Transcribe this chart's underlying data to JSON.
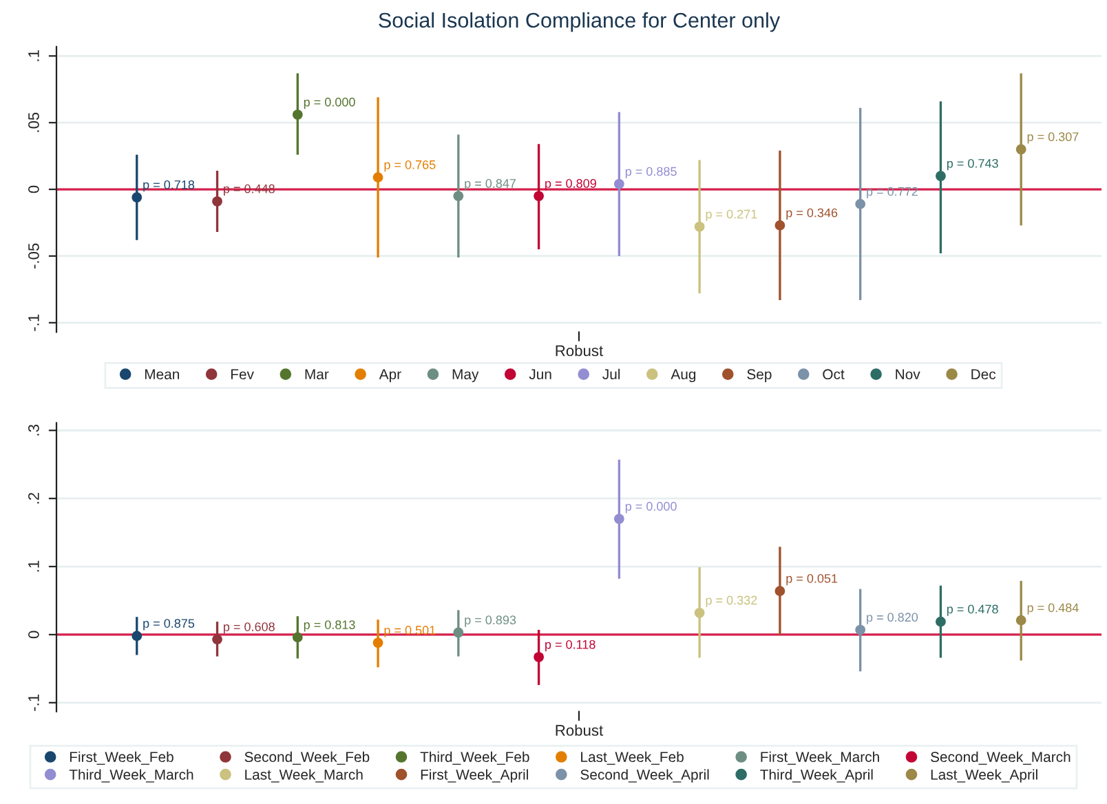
{
  "chart_data": [
    {
      "type": "scatter",
      "title": "Social Isolation Compliance for Center only",
      "categories": [
        null,
        null,
        null,
        null,
        null,
        null,
        null,
        null,
        null,
        null,
        null,
        null
      ],
      "ylim": [
        -0.107,
        0.107
      ],
      "yticks": [
        {
          "value": -0.1,
          "label": "-.1"
        },
        {
          "value": -0.05,
          "label": "-.05"
        },
        {
          "value": 0,
          "label": "0"
        },
        {
          "value": 0.05,
          "label": ".05"
        },
        {
          "value": 0.1,
          "label": ".1"
        }
      ],
      "grid": "y",
      "legend": "bottom",
      "marker": "circle",
      "ref_lines": [
        {
          "axis": "y",
          "value": 0,
          "color": "#d6204c"
        }
      ],
      "annotations": [
        "p = 0.718",
        "p = 0.448",
        "p = 0.000",
        "p = 0.765",
        "p = 0.847",
        "p = 0.809",
        "p = 0.885",
        "p = 0.271",
        "p = 0.346",
        "p = 0.772",
        "p = 0.743",
        "p = 0.307",
        "Robust"
      ],
      "series": [
        {
          "name": "Mean",
          "color": "#1a476f",
          "values": [
            -0.006,
            null,
            null,
            null,
            null,
            null,
            null,
            null,
            null,
            null,
            null,
            null
          ],
          "errors": [
            [
              -0.038,
              0.026
            ],
            null,
            null,
            null,
            null,
            null,
            null,
            null,
            null,
            null,
            null,
            null
          ]
        },
        {
          "name": "Fev",
          "color": "#90353b",
          "values": [
            null,
            -0.009,
            null,
            null,
            null,
            null,
            null,
            null,
            null,
            null,
            null,
            null
          ],
          "errors": [
            null,
            [
              -0.032,
              0.014
            ],
            null,
            null,
            null,
            null,
            null,
            null,
            null,
            null,
            null,
            null
          ]
        },
        {
          "name": "Mar",
          "color": "#55752f",
          "values": [
            null,
            null,
            0.056,
            null,
            null,
            null,
            null,
            null,
            null,
            null,
            null,
            null
          ],
          "errors": [
            null,
            null,
            [
              0.026,
              0.087
            ],
            null,
            null,
            null,
            null,
            null,
            null,
            null,
            null,
            null
          ]
        },
        {
          "name": "Apr",
          "color": "#e37e00",
          "values": [
            null,
            null,
            null,
            0.009,
            null,
            null,
            null,
            null,
            null,
            null,
            null,
            null
          ],
          "errors": [
            null,
            null,
            null,
            [
              -0.051,
              0.069
            ],
            null,
            null,
            null,
            null,
            null,
            null,
            null,
            null
          ]
        },
        {
          "name": "May",
          "color": "#6e8e84",
          "values": [
            null,
            null,
            null,
            null,
            -0.005,
            null,
            null,
            null,
            null,
            null,
            null,
            null
          ],
          "errors": [
            null,
            null,
            null,
            null,
            [
              -0.051,
              0.041
            ],
            null,
            null,
            null,
            null,
            null,
            null,
            null
          ]
        },
        {
          "name": "Jun",
          "color": "#c10534",
          "values": [
            null,
            null,
            null,
            null,
            null,
            -0.005,
            null,
            null,
            null,
            null,
            null,
            null
          ],
          "errors": [
            null,
            null,
            null,
            null,
            null,
            [
              -0.045,
              0.034
            ],
            null,
            null,
            null,
            null,
            null,
            null
          ]
        },
        {
          "name": "Jul",
          "color": "#938dd2",
          "values": [
            null,
            null,
            null,
            null,
            null,
            null,
            0.004,
            null,
            null,
            null,
            null,
            null
          ],
          "errors": [
            null,
            null,
            null,
            null,
            null,
            null,
            [
              -0.05,
              0.058
            ],
            null,
            null,
            null,
            null,
            null
          ]
        },
        {
          "name": "Aug",
          "color": "#cac27e",
          "values": [
            null,
            null,
            null,
            null,
            null,
            null,
            null,
            -0.028,
            null,
            null,
            null,
            null
          ],
          "errors": [
            null,
            null,
            null,
            null,
            null,
            null,
            null,
            [
              -0.078,
              0.022
            ],
            null,
            null,
            null,
            null
          ]
        },
        {
          "name": "Sep",
          "color": "#a0522d",
          "values": [
            null,
            null,
            null,
            null,
            null,
            null,
            null,
            null,
            -0.027,
            null,
            null,
            null
          ],
          "errors": [
            null,
            null,
            null,
            null,
            null,
            null,
            null,
            null,
            [
              -0.083,
              0.029
            ],
            null,
            null,
            null
          ]
        },
        {
          "name": "Oct",
          "color": "#7b92a8",
          "values": [
            null,
            null,
            null,
            null,
            null,
            null,
            null,
            null,
            null,
            -0.011,
            null,
            null
          ],
          "errors": [
            null,
            null,
            null,
            null,
            null,
            null,
            null,
            null,
            null,
            [
              -0.083,
              0.061
            ],
            null,
            null
          ]
        },
        {
          "name": "Nov",
          "color": "#2d6d66",
          "values": [
            null,
            null,
            null,
            null,
            null,
            null,
            null,
            null,
            null,
            null,
            0.01,
            null
          ],
          "errors": [
            null,
            null,
            null,
            null,
            null,
            null,
            null,
            null,
            null,
            null,
            [
              -0.048,
              0.066
            ],
            null
          ]
        },
        {
          "name": "Dec",
          "color": "#9c8847",
          "values": [
            null,
            null,
            null,
            null,
            null,
            null,
            null,
            null,
            null,
            null,
            null,
            0.03
          ],
          "errors": [
            null,
            null,
            null,
            null,
            null,
            null,
            null,
            null,
            null,
            null,
            null,
            [
              -0.027,
              0.087
            ]
          ]
        }
      ]
    },
    {
      "type": "scatter",
      "categories": [
        null,
        null,
        null,
        null,
        null,
        null,
        null,
        null,
        null,
        null,
        null,
        null
      ],
      "ylim": [
        -0.113,
        0.311
      ],
      "yticks": [
        {
          "value": -0.1,
          "label": "-.1"
        },
        {
          "value": 0,
          "label": "0"
        },
        {
          "value": 0.1,
          "label": ".1"
        },
        {
          "value": 0.2,
          "label": ".2"
        },
        {
          "value": 0.3,
          "label": ".3"
        }
      ],
      "grid": "y",
      "legend": "bottom",
      "marker": "circle",
      "ref_lines": [
        {
          "axis": "y",
          "value": 0,
          "color": "#d6204c"
        }
      ],
      "annotations": [
        "p = 0.875",
        "p = 0.608",
        "p = 0.813",
        "p = 0.501",
        "p = 0.893",
        "p = 0.118",
        "p = 0.000",
        "p = 0.332",
        "p = 0.051",
        "p = 0.820",
        "p = 0.478",
        "p = 0.484",
        "Robust"
      ],
      "series": [
        {
          "name": "First_Week_Feb",
          "color": "#1a476f",
          "values": [
            -0.002,
            null,
            null,
            null,
            null,
            null,
            null,
            null,
            null,
            null,
            null,
            null
          ],
          "errors": [
            [
              -0.03,
              0.026
            ],
            null,
            null,
            null,
            null,
            null,
            null,
            null,
            null,
            null,
            null,
            null
          ]
        },
        {
          "name": "Second_Week_Feb",
          "color": "#90353b",
          "values": [
            null,
            -0.007,
            null,
            null,
            null,
            null,
            null,
            null,
            null,
            null,
            null,
            null
          ],
          "errors": [
            null,
            [
              -0.032,
              0.019
            ],
            null,
            null,
            null,
            null,
            null,
            null,
            null,
            null,
            null,
            null
          ]
        },
        {
          "name": "Third_Week_Feb",
          "color": "#55752f",
          "values": [
            null,
            null,
            -0.004,
            null,
            null,
            null,
            null,
            null,
            null,
            null,
            null,
            null
          ],
          "errors": [
            null,
            null,
            [
              -0.035,
              0.027
            ],
            null,
            null,
            null,
            null,
            null,
            null,
            null,
            null,
            null
          ]
        },
        {
          "name": "Last_Week_Feb",
          "color": "#e37e00",
          "values": [
            null,
            null,
            null,
            -0.012,
            null,
            null,
            null,
            null,
            null,
            null,
            null,
            null
          ],
          "errors": [
            null,
            null,
            null,
            [
              -0.048,
              0.022
            ],
            null,
            null,
            null,
            null,
            null,
            null,
            null,
            null
          ]
        },
        {
          "name": "First_Week_March",
          "color": "#6e8e84",
          "values": [
            null,
            null,
            null,
            null,
            0.003,
            null,
            null,
            null,
            null,
            null,
            null,
            null
          ],
          "errors": [
            null,
            null,
            null,
            null,
            [
              -0.032,
              0.036
            ],
            null,
            null,
            null,
            null,
            null,
            null,
            null
          ]
        },
        {
          "name": "Second_Week_March",
          "color": "#c10534",
          "values": [
            null,
            null,
            null,
            null,
            null,
            -0.033,
            null,
            null,
            null,
            null,
            null,
            null
          ],
          "errors": [
            null,
            null,
            null,
            null,
            null,
            [
              -0.074,
              0.007
            ],
            null,
            null,
            null,
            null,
            null,
            null
          ]
        },
        {
          "name": "Third_Week_March",
          "color": "#938dd2",
          "values": [
            null,
            null,
            null,
            null,
            null,
            null,
            0.17,
            null,
            null,
            null,
            null,
            null
          ],
          "errors": [
            null,
            null,
            null,
            null,
            null,
            null,
            [
              0.082,
              0.257
            ],
            null,
            null,
            null,
            null,
            null
          ]
        },
        {
          "name": "Last_Week_March",
          "color": "#cac27e",
          "values": [
            null,
            null,
            null,
            null,
            null,
            null,
            null,
            0.032,
            null,
            null,
            null,
            null
          ],
          "errors": [
            null,
            null,
            null,
            null,
            null,
            null,
            null,
            [
              -0.034,
              0.099
            ],
            null,
            null,
            null,
            null
          ]
        },
        {
          "name": "First_Week_April",
          "color": "#a0522d",
          "values": [
            null,
            null,
            null,
            null,
            null,
            null,
            null,
            null,
            0.064,
            null,
            null,
            null
          ],
          "errors": [
            null,
            null,
            null,
            null,
            null,
            null,
            null,
            null,
            [
              0.0,
              0.129
            ],
            null,
            null,
            null
          ]
        },
        {
          "name": "Second_Week_April",
          "color": "#7b92a8",
          "values": [
            null,
            null,
            null,
            null,
            null,
            null,
            null,
            null,
            null,
            0.007,
            null,
            null
          ],
          "errors": [
            null,
            null,
            null,
            null,
            null,
            null,
            null,
            null,
            null,
            [
              -0.054,
              0.067
            ],
            null,
            null
          ]
        },
        {
          "name": "Third_Week_April",
          "color": "#2d6d66",
          "values": [
            null,
            null,
            null,
            null,
            null,
            null,
            null,
            null,
            null,
            null,
            0.019,
            null
          ],
          "errors": [
            null,
            null,
            null,
            null,
            null,
            null,
            null,
            null,
            null,
            null,
            [
              -0.034,
              0.072
            ],
            null
          ]
        },
        {
          "name": "Last_Week_April",
          "color": "#9c8847",
          "values": [
            null,
            null,
            null,
            null,
            null,
            null,
            null,
            null,
            null,
            null,
            null,
            0.021
          ],
          "errors": [
            null,
            null,
            null,
            null,
            null,
            null,
            null,
            null,
            null,
            null,
            null,
            [
              -0.038,
              0.079
            ]
          ]
        }
      ]
    }
  ]
}
